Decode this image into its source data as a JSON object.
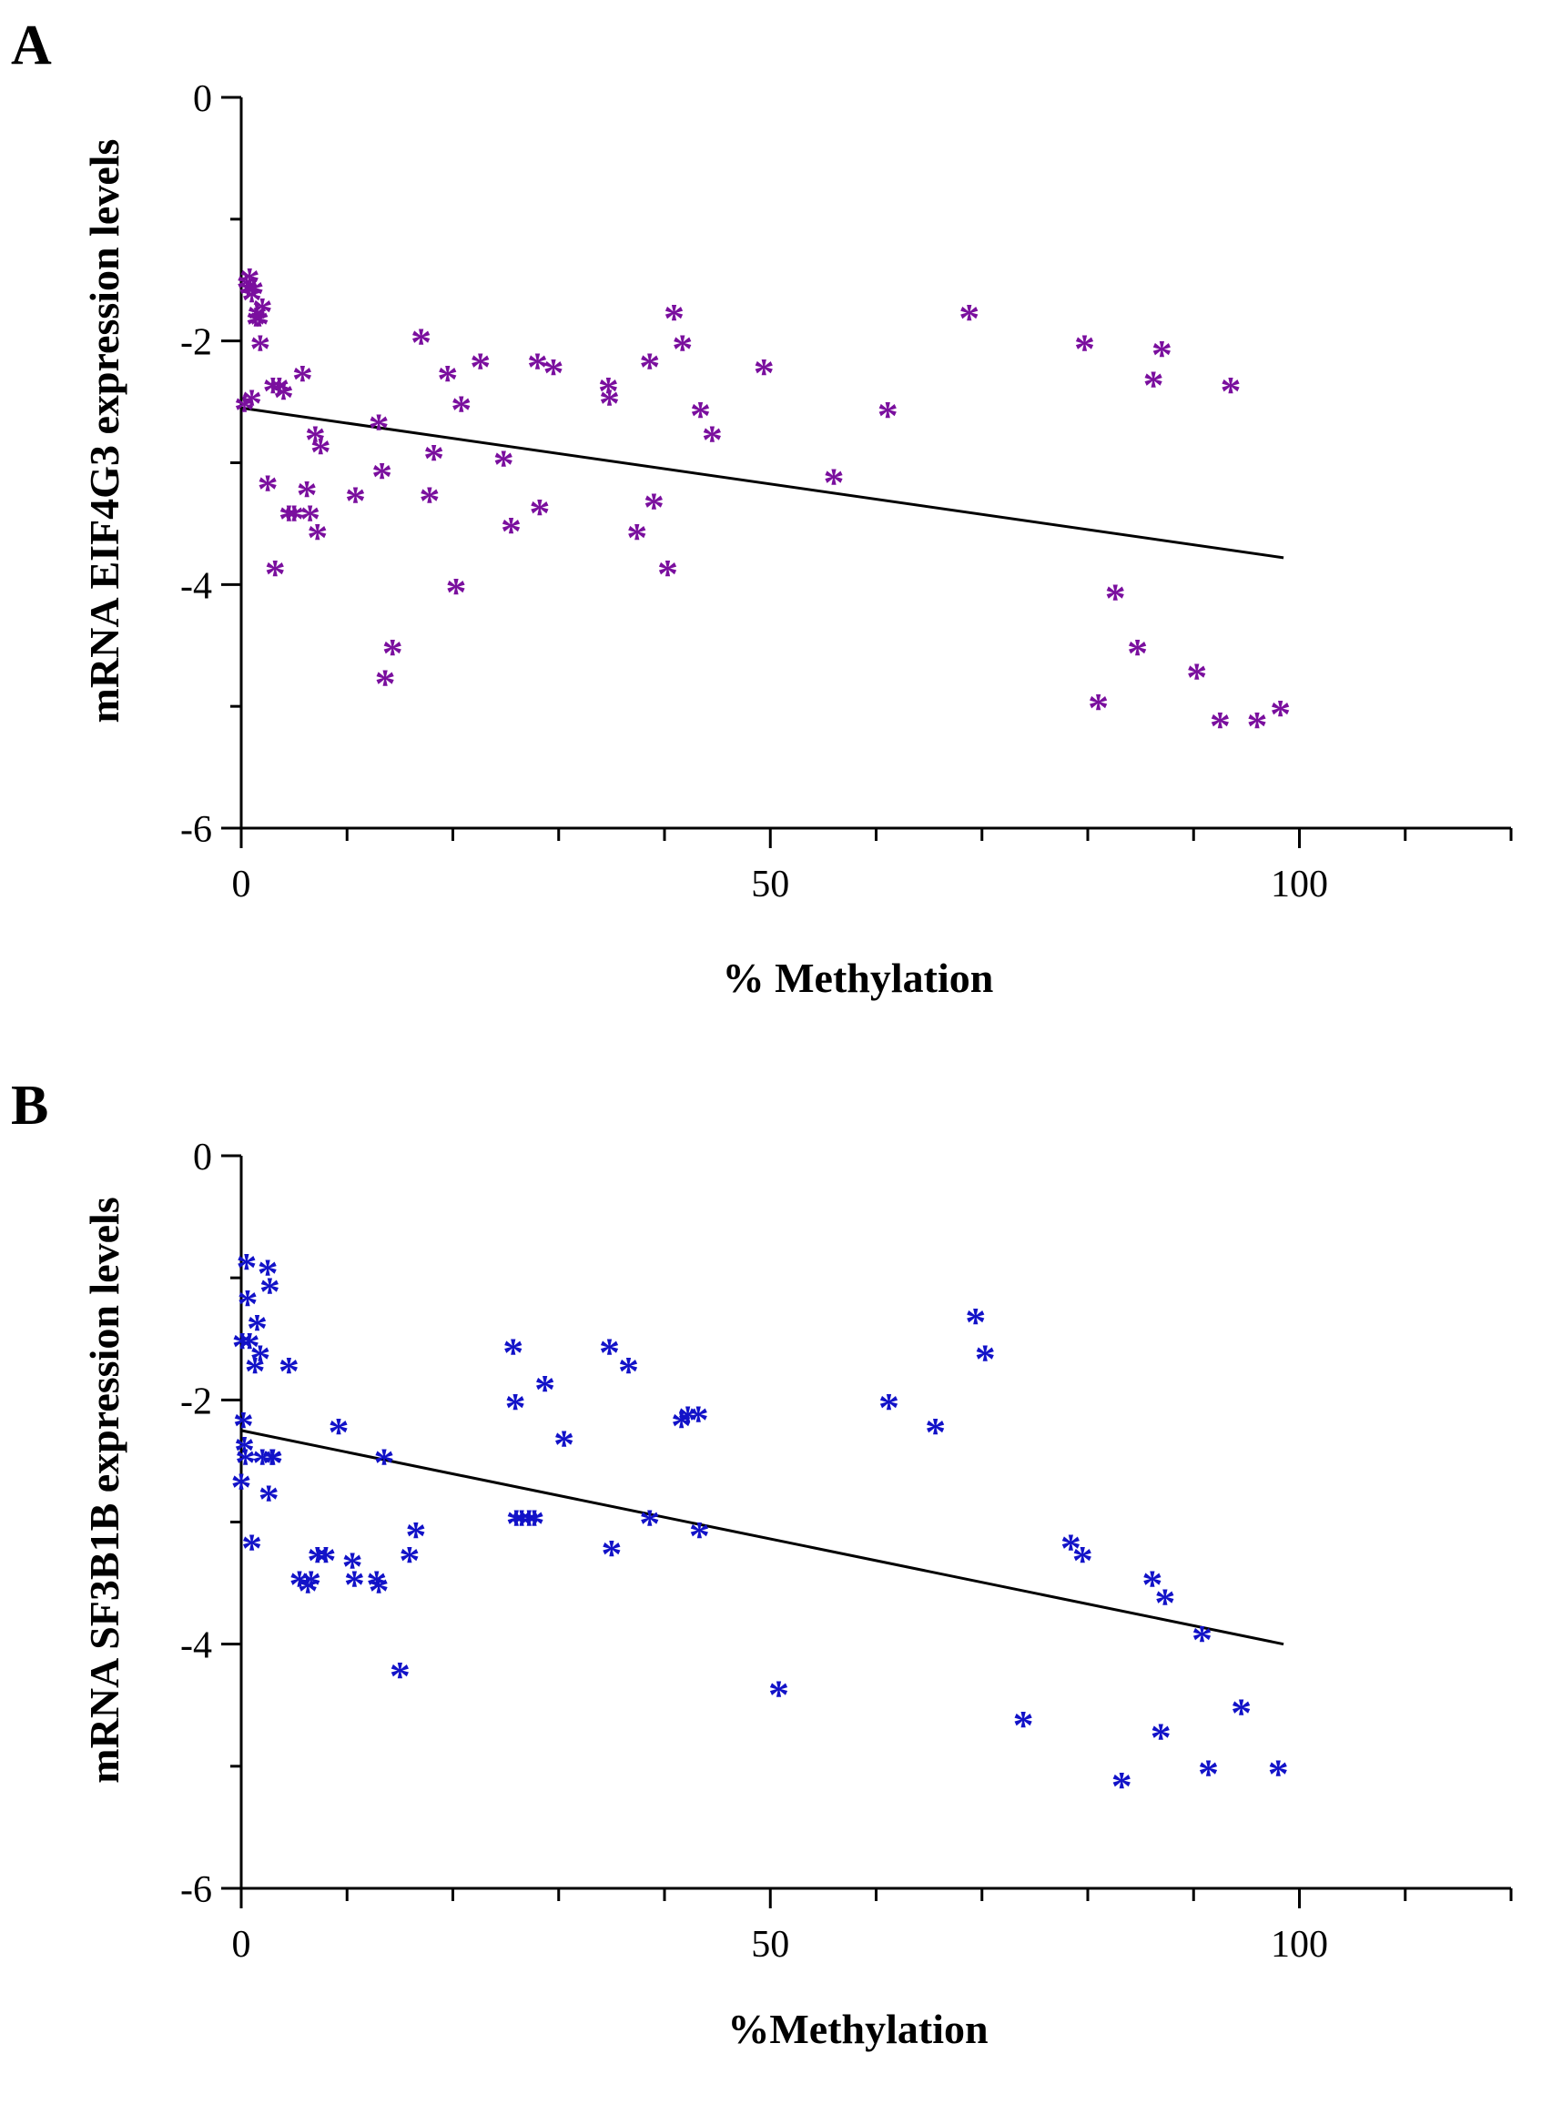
{
  "chart_data": [
    {
      "type": "scatter",
      "panel": "A",
      "title": "",
      "xlabel": "% Methylation",
      "ylabel": "mRNA EIF4G3 expression levels",
      "xlim": [
        0,
        120
      ],
      "ylim": [
        -6,
        0
      ],
      "x_ticks": [
        0,
        50,
        100
      ],
      "x_tick_labels": [
        "0",
        "50",
        "100"
      ],
      "y_ticks": [
        0,
        -2,
        -4,
        -6
      ],
      "y_tick_labels": [
        "0",
        "-2",
        "-4",
        "-6"
      ],
      "marker_symbol": "*",
      "marker_color": "#7a0f9e",
      "series": [
        {
          "name": "EIF4G3",
          "x": [
            0.3,
            0.5,
            0.7,
            0.8,
            1.0,
            1.0,
            1.2,
            1.4,
            1.5,
            1.7,
            1.8,
            2.0,
            2.5,
            3.0,
            3.2,
            3.6,
            4.0,
            4.5,
            5.0,
            5.8,
            6.2,
            6.5,
            7.0,
            7.2,
            7.5,
            10.8,
            13.0,
            13.3,
            13.6,
            14.3,
            17.0,
            17.8,
            18.2,
            19.5,
            20.3,
            20.8,
            22.6,
            24.8,
            25.5,
            28.0,
            28.2,
            29.5,
            34.7,
            34.8,
            37.4,
            38.6,
            39.0,
            40.3,
            40.9,
            41.7,
            43.4,
            44.5,
            49.4,
            56.0,
            61.1,
            68.8,
            79.7,
            81.0,
            82.6,
            84.7,
            86.2,
            87.0,
            90.3,
            92.5,
            93.5,
            96.0,
            98.2
          ],
          "y": [
            -2.55,
            -1.55,
            -1.6,
            -1.5,
            -1.65,
            -2.5,
            -1.6,
            -1.85,
            -1.8,
            -1.85,
            -2.05,
            -1.75,
            -3.2,
            -2.4,
            -3.9,
            -2.4,
            -2.45,
            -3.45,
            -3.45,
            -2.3,
            -3.25,
            -3.45,
            -2.8,
            -3.6,
            -2.9,
            -3.3,
            -2.7,
            -3.1,
            -4.8,
            -4.55,
            -2.0,
            -3.3,
            -2.95,
            -2.3,
            -4.05,
            -2.55,
            -2.2,
            -3.0,
            -3.55,
            -2.2,
            -3.4,
            -2.25,
            -2.4,
            -2.5,
            -3.6,
            -2.2,
            -3.35,
            -3.9,
            -1.8,
            -2.05,
            -2.6,
            -2.8,
            -2.25,
            -3.15,
            -2.6,
            -1.8,
            -2.05,
            -5.0,
            -4.1,
            -4.55,
            -2.35,
            -2.1,
            -4.75,
            -5.15,
            -2.4,
            -5.15,
            -5.05
          ]
        }
      ],
      "regression_line": {
        "x": [
          0,
          98.5
        ],
        "y": [
          -2.55,
          -3.78
        ],
        "color": "#000000"
      }
    },
    {
      "type": "scatter",
      "panel": "B",
      "title": "",
      "xlabel": "%Methylation",
      "ylabel": "mRNA SF3B1B expression levels",
      "xlim": [
        0,
        120
      ],
      "ylim": [
        -6,
        0
      ],
      "x_ticks": [
        0,
        50,
        100
      ],
      "x_tick_labels": [
        "0",
        "50",
        "100"
      ],
      "y_ticks": [
        0,
        -2,
        -4,
        -6
      ],
      "y_tick_labels": [
        "0",
        "-2",
        "-4",
        "-6"
      ],
      "marker_symbol": "*",
      "marker_color": "#1212c8",
      "series": [
        {
          "name": "SF3B1B",
          "x": [
            0.0,
            0.1,
            0.2,
            0.3,
            0.4,
            0.5,
            0.6,
            0.8,
            1.0,
            1.3,
            1.5,
            1.8,
            2.0,
            2.5,
            2.6,
            2.7,
            2.9,
            3.0,
            4.5,
            5.5,
            6.3,
            6.6,
            7.2,
            8.0,
            9.2,
            10.5,
            10.7,
            12.8,
            13.0,
            13.5,
            15.0,
            15.9,
            16.5,
            25.7,
            25.9,
            26.0,
            26.5,
            27.2,
            27.7,
            28.7,
            30.5,
            34.8,
            35.0,
            36.6,
            38.6,
            41.6,
            42.2,
            43.2,
            43.3,
            50.8,
            61.2,
            65.6,
            69.4,
            70.3,
            73.9,
            78.4,
            79.5,
            86.1,
            86.9,
            87.3,
            90.8,
            91.4,
            94.5,
            98.0,
            83.2
          ],
          "y": [
            -2.7,
            -1.55,
            -2.2,
            -2.4,
            -2.5,
            -0.9,
            -1.2,
            -1.55,
            -3.2,
            -1.75,
            -1.4,
            -1.65,
            -2.5,
            -0.95,
            -2.8,
            -1.1,
            -2.5,
            -2.5,
            -1.75,
            -3.5,
            -3.55,
            -3.5,
            -3.3,
            -3.3,
            -2.25,
            -3.35,
            -3.5,
            -3.5,
            -3.55,
            -2.5,
            -4.25,
            -3.3,
            -3.1,
            -1.6,
            -2.05,
            -3.0,
            -3.0,
            -3.0,
            -3.0,
            -1.9,
            -2.35,
            -1.6,
            -3.25,
            -1.75,
            -3.0,
            -2.2,
            -2.15,
            -2.15,
            -3.1,
            -4.4,
            -2.05,
            -2.25,
            -1.35,
            -1.65,
            -4.65,
            -3.2,
            -3.3,
            -3.5,
            -4.75,
            -3.65,
            -3.95,
            -5.05,
            -4.55,
            -5.05,
            -5.15
          ]
        }
      ],
      "regression_line": {
        "x": [
          0,
          98.5
        ],
        "y": [
          -2.25,
          -4.0
        ],
        "color": "#000000"
      }
    }
  ]
}
